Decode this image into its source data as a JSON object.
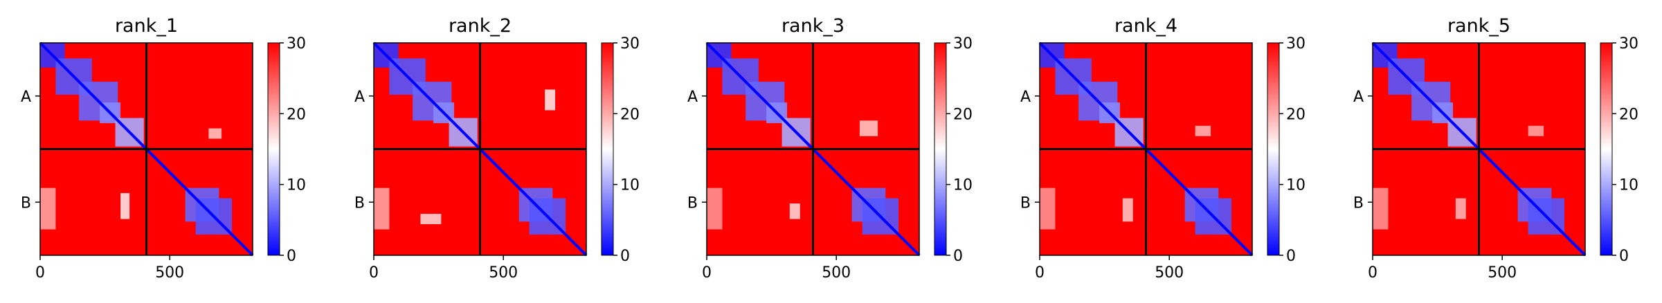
{
  "figure": {
    "background": "#ffffff"
  },
  "colormap": {
    "low": "#0000ff",
    "mid": "#ffffff",
    "high": "#ff0000",
    "vmin": 0,
    "vmax": 30
  },
  "chart_data": [
    {
      "type": "heatmap",
      "title": "rank_1",
      "xlim": [
        0,
        820
      ],
      "ylim": [
        820,
        0
      ],
      "xticks": [
        0,
        500
      ],
      "xtick_labels": [
        "0",
        "500"
      ],
      "ytick_labels": [
        "A",
        "B"
      ],
      "chain_boundary": 410,
      "colorbar": {
        "min": 0,
        "max": 30,
        "ticks": [
          0,
          10,
          20,
          30
        ],
        "tick_labels": [
          "0",
          "10",
          "20",
          "30"
        ]
      },
      "low_error_domains": [
        [
          0,
          95,
          0,
          95,
          3
        ],
        [
          60,
          200,
          60,
          200,
          5
        ],
        [
          150,
          300,
          150,
          300,
          6
        ],
        [
          230,
          310,
          230,
          310,
          8
        ],
        [
          290,
          400,
          290,
          400,
          10
        ],
        [
          560,
          690,
          560,
          690,
          6
        ],
        [
          600,
          740,
          600,
          740,
          5
        ]
      ],
      "mid_error_patches": [
        [
          310,
          345,
          580,
          680,
          16
        ],
        [
          650,
          700,
          330,
          370,
          18
        ],
        [
          0,
          60,
          560,
          720,
          20
        ]
      ]
    },
    {
      "type": "heatmap",
      "title": "rank_2",
      "xlim": [
        0,
        820
      ],
      "ylim": [
        820,
        0
      ],
      "xticks": [
        0,
        500
      ],
      "xtick_labels": [
        "0",
        "500"
      ],
      "ytick_labels": [
        "A",
        "B"
      ],
      "chain_boundary": 410,
      "colorbar": {
        "min": 0,
        "max": 30,
        "ticks": [
          0,
          10,
          20,
          30
        ],
        "tick_labels": [
          "0",
          "10",
          "20",
          "30"
        ]
      },
      "low_error_domains": [
        [
          0,
          95,
          0,
          95,
          3
        ],
        [
          60,
          200,
          60,
          200,
          5
        ],
        [
          150,
          300,
          150,
          300,
          6
        ],
        [
          230,
          310,
          230,
          310,
          8
        ],
        [
          290,
          400,
          290,
          400,
          10
        ],
        [
          560,
          690,
          560,
          690,
          6
        ],
        [
          600,
          740,
          600,
          740,
          5
        ]
      ],
      "mid_error_patches": [
        [
          660,
          700,
          180,
          260,
          16
        ],
        [
          180,
          260,
          660,
          700,
          17
        ],
        [
          0,
          60,
          560,
          720,
          20
        ]
      ]
    },
    {
      "type": "heatmap",
      "title": "rank_3",
      "xlim": [
        0,
        820
      ],
      "ylim": [
        820,
        0
      ],
      "xticks": [
        0,
        500
      ],
      "xtick_labels": [
        "0",
        "500"
      ],
      "ytick_labels": [
        "A",
        "B"
      ],
      "chain_boundary": 410,
      "colorbar": {
        "min": 0,
        "max": 30,
        "ticks": [
          0,
          10,
          20,
          30
        ],
        "tick_labels": [
          "0",
          "10",
          "20",
          "30"
        ]
      },
      "low_error_domains": [
        [
          0,
          95,
          0,
          95,
          3
        ],
        [
          60,
          200,
          60,
          200,
          5
        ],
        [
          150,
          300,
          150,
          300,
          6
        ],
        [
          230,
          310,
          230,
          310,
          8
        ],
        [
          290,
          400,
          290,
          400,
          10
        ],
        [
          560,
          690,
          560,
          690,
          6
        ],
        [
          600,
          740,
          600,
          740,
          5
        ]
      ],
      "mid_error_patches": [
        [
          320,
          360,
          620,
          680,
          17
        ],
        [
          590,
          660,
          300,
          360,
          18
        ],
        [
          0,
          60,
          560,
          720,
          21
        ]
      ]
    },
    {
      "type": "heatmap",
      "title": "rank_4",
      "xlim": [
        0,
        820
      ],
      "ylim": [
        820,
        0
      ],
      "xticks": [
        0,
        500
      ],
      "xtick_labels": [
        "0",
        "500"
      ],
      "ytick_labels": [
        "A",
        "B"
      ],
      "chain_boundary": 410,
      "colorbar": {
        "min": 0,
        "max": 30,
        "ticks": [
          0,
          10,
          20,
          30
        ],
        "tick_labels": [
          "0",
          "10",
          "20",
          "30"
        ]
      },
      "low_error_domains": [
        [
          0,
          95,
          0,
          95,
          3
        ],
        [
          60,
          200,
          60,
          200,
          5
        ],
        [
          150,
          300,
          150,
          300,
          6
        ],
        [
          230,
          310,
          230,
          310,
          8
        ],
        [
          290,
          400,
          290,
          400,
          10
        ],
        [
          560,
          690,
          560,
          690,
          6
        ],
        [
          600,
          740,
          600,
          740,
          5
        ]
      ],
      "mid_error_patches": [
        [
          320,
          360,
          600,
          690,
          18
        ],
        [
          600,
          660,
          320,
          360,
          19
        ],
        [
          0,
          60,
          560,
          720,
          21
        ]
      ]
    },
    {
      "type": "heatmap",
      "title": "rank_5",
      "xlim": [
        0,
        820
      ],
      "ylim": [
        820,
        0
      ],
      "xticks": [
        0,
        500
      ],
      "xtick_labels": [
        "0",
        "500"
      ],
      "ytick_labels": [
        "A",
        "B"
      ],
      "chain_boundary": 410,
      "colorbar": {
        "min": 0,
        "max": 30,
        "ticks": [
          0,
          10,
          20,
          30
        ],
        "tick_labels": [
          "0",
          "10",
          "20",
          "30"
        ]
      },
      "low_error_domains": [
        [
          0,
          95,
          0,
          95,
          3
        ],
        [
          60,
          200,
          60,
          200,
          5
        ],
        [
          150,
          300,
          150,
          300,
          6
        ],
        [
          230,
          310,
          230,
          310,
          8
        ],
        [
          290,
          400,
          290,
          400,
          10
        ],
        [
          560,
          690,
          560,
          690,
          6
        ],
        [
          600,
          740,
          600,
          740,
          5
        ]
      ],
      "mid_error_patches": [
        [
          320,
          360,
          600,
          680,
          19
        ],
        [
          600,
          660,
          320,
          360,
          20
        ],
        [
          0,
          60,
          560,
          720,
          21
        ]
      ]
    }
  ]
}
